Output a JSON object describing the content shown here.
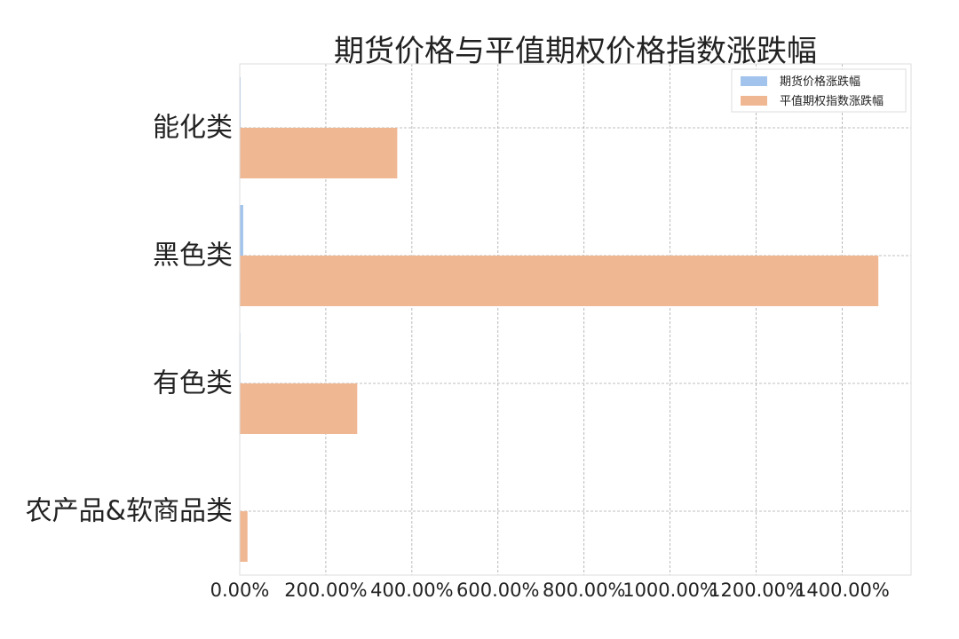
{
  "chart_data": {
    "type": "bar",
    "orientation": "horizontal",
    "title": "期货价格与平值期权价格指数涨跌幅",
    "categories": [
      "农产品&软商品类",
      "有色类",
      "黑色类",
      "能化类"
    ],
    "series": [
      {
        "name": "期货价格涨跌幅",
        "color": "#a1c3ec",
        "values": [
          0.0,
          1.5,
          8.0,
          2.0
        ]
      },
      {
        "name": "平值期权指数涨跌幅",
        "color": "#f0b793",
        "values": [
          18.0,
          273.0,
          1484.0,
          366.0
        ]
      }
    ],
    "xlim": [
      0,
      1560
    ],
    "xticks": [
      0,
      200,
      400,
      600,
      800,
      1000,
      1200,
      1400
    ],
    "xtick_labels": [
      "0.00%",
      "200.00%",
      "400.00%",
      "600.00%",
      "800.00%",
      "1000.00%",
      "1200.00%",
      "1400.00%"
    ],
    "xlabel": "",
    "ylabel": "",
    "grid": true,
    "legend_position": "top-right"
  }
}
